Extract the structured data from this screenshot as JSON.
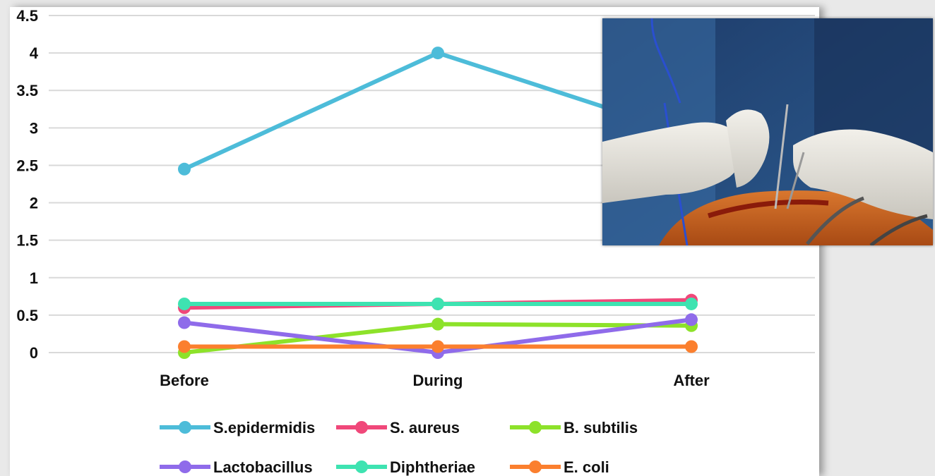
{
  "chart_data": {
    "type": "line",
    "categories": [
      "Before",
      "During",
      "After"
    ],
    "ylim": [
      0,
      4.5
    ],
    "yticks": [
      "0",
      "0.5",
      "1",
      "1.5",
      "2",
      "2.5",
      "3",
      "3.5",
      "4",
      "4.5"
    ],
    "grid": true,
    "legend_position": "bottom",
    "series": [
      {
        "name": "S.epidermidis",
        "color": "#4dbcd9",
        "values": [
          2.45,
          4.0,
          2.9
        ]
      },
      {
        "name": "S. aureus",
        "color": "#f0487a",
        "values": [
          0.6,
          0.65,
          0.7
        ]
      },
      {
        "name": "B. subtilis",
        "color": "#8de22a",
        "values": [
          0.0,
          0.38,
          0.36
        ]
      },
      {
        "name": "Lactobacillus",
        "color": "#8f6bea",
        "values": [
          0.4,
          0.0,
          0.44
        ]
      },
      {
        "name": "Diphtheriae",
        "color": "#3ee3b1",
        "values": [
          0.65,
          0.65,
          0.65
        ]
      },
      {
        "name": "E. coli",
        "color": "#fb7f2e",
        "values": [
          0.08,
          0.08,
          0.08
        ]
      }
    ]
  },
  "photo": {
    "icon": "surgery-photo"
  }
}
